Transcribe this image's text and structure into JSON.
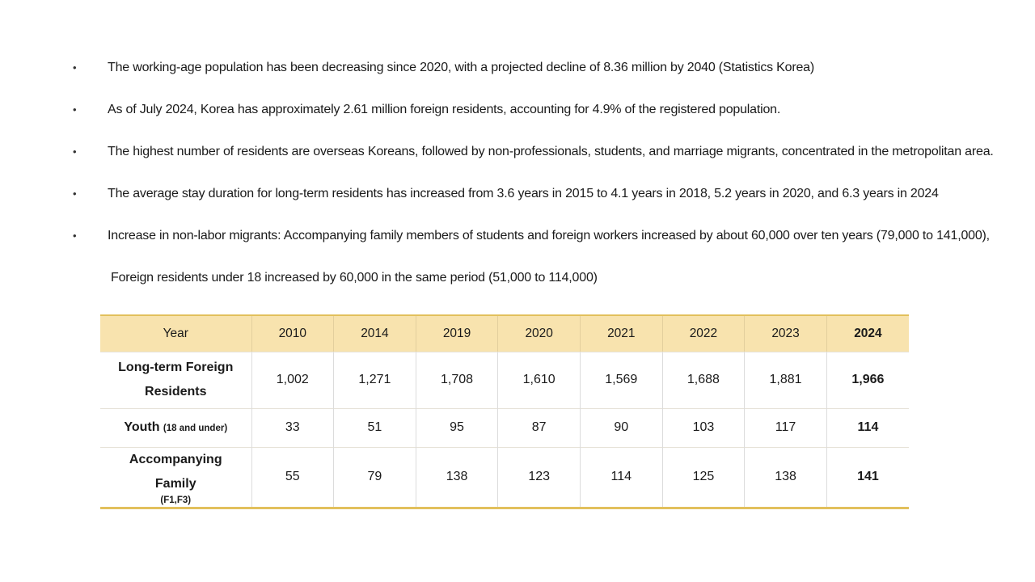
{
  "bullets": [
    {
      "text": "The working-age population has been decreasing since 2020, with a projected decline of 8.36 million by 2040 (Statistics Korea)"
    },
    {
      "text": "As of July 2024, Korea has approximately 2.61 million foreign residents, accounting for 4.9% of the registered population."
    },
    {
      "text": "The highest number of residents are overseas Koreans, followed by non-professionals, students, and marriage migrants, concentrated in the metropolitan area."
    },
    {
      "text": "The average stay duration for long-term residents has increased from 3.6 years in 2015 to 4.1 years in 2018, 5.2 years in 2020, and 6.3 years in 2024"
    },
    {
      "text": "Increase in non-labor migrants: Accompanying family members of students and foreign workers increased by about 60,000 over ten years (79,000 to 141,000),"
    }
  ],
  "continuation": "Foreign residents under 18 increased by 60,000 in the same period (51,000 to 114,000)",
  "table": {
    "header": [
      "Year",
      "2010",
      "2014",
      "2019",
      "2020",
      "2021",
      "2022",
      "2023",
      "2024"
    ],
    "rows": [
      {
        "label": "Long-term Foreign Residents",
        "sublabel": "",
        "values": [
          "1,002",
          "1,271",
          "1,708",
          "1,610",
          "1,569",
          "1,688",
          "1,881",
          "1,966"
        ]
      },
      {
        "label": "Youth",
        "sublabel": "(18 and under)",
        "values": [
          "33",
          "51",
          "95",
          "87",
          "90",
          "103",
          "117",
          "114"
        ]
      },
      {
        "label": "Accompanying Family",
        "sublabel": "(F1,F3)",
        "values": [
          "55",
          "79",
          "138",
          "123",
          "114",
          "125",
          "138",
          "141"
        ]
      }
    ]
  },
  "colors": {
    "accent-gold": "#e2c05c",
    "header-bg": "#f8e3ae"
  }
}
